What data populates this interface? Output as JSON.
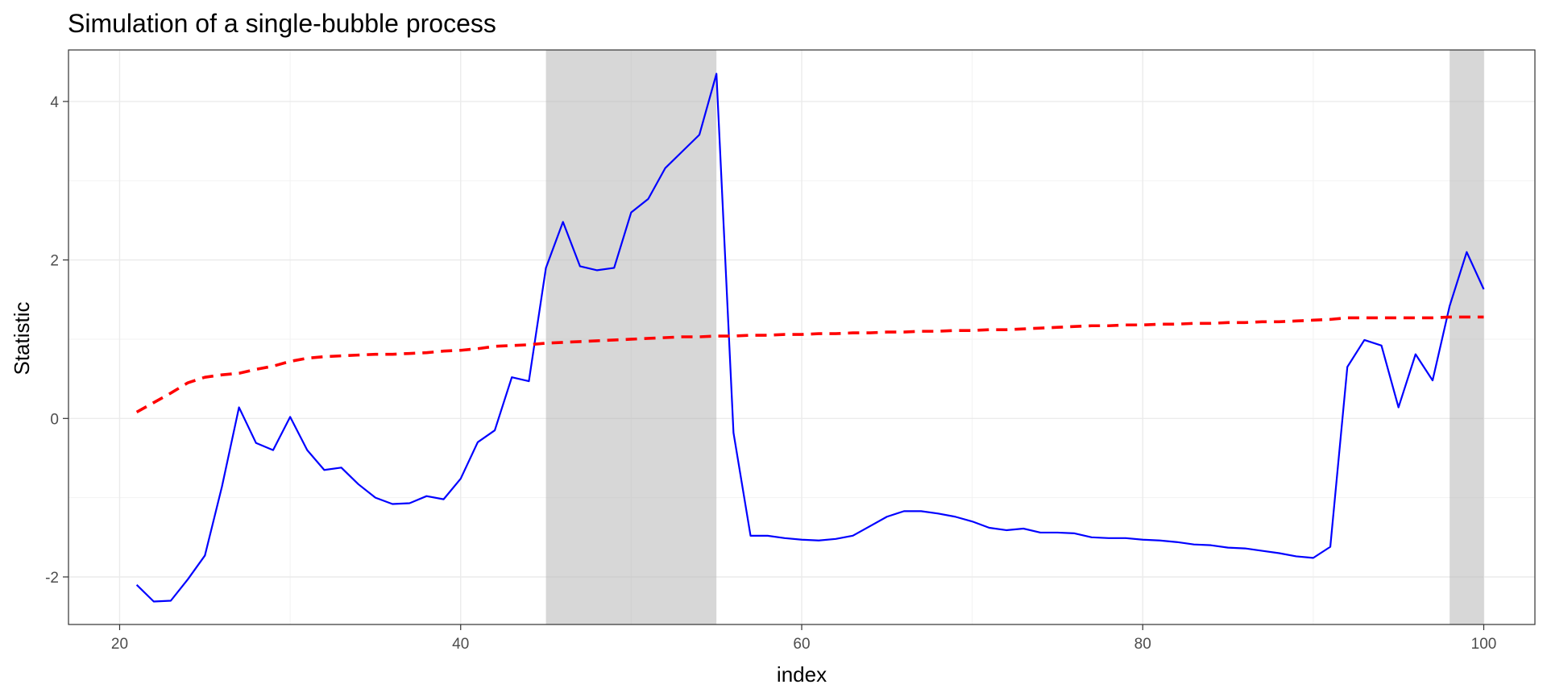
{
  "chart_data": {
    "type": "line",
    "title": "Simulation of a single-bubble process",
    "xlabel": "index",
    "ylabel": "Statistic",
    "xlim": [
      17,
      103
    ],
    "ylim": [
      -2.6,
      4.65
    ],
    "x_ticks": [
      20,
      40,
      60,
      80,
      100
    ],
    "y_ticks": [
      -2,
      0,
      2,
      4
    ],
    "x_tick_labels": [
      "20",
      "40",
      "60",
      "80",
      "100"
    ],
    "y_tick_labels": [
      "-2",
      "0",
      "2",
      "4"
    ],
    "grid": true,
    "legend": "none",
    "shaded_regions": [
      {
        "start": 45,
        "end": 55
      },
      {
        "start": 98,
        "end": 100
      }
    ],
    "series": [
      {
        "color": "#0000ff",
        "line_style": "solid",
        "x": [
          21,
          22,
          23,
          24,
          25,
          26,
          27,
          28,
          29,
          30,
          31,
          32,
          33,
          34,
          35,
          36,
          37,
          38,
          39,
          40,
          41,
          42,
          43,
          44,
          45,
          46,
          47,
          48,
          49,
          50,
          51,
          52,
          53,
          54,
          55,
          56,
          57,
          58,
          59,
          60,
          61,
          62,
          63,
          64,
          65,
          66,
          67,
          68,
          69,
          70,
          71,
          72,
          73,
          74,
          75,
          76,
          77,
          78,
          79,
          80,
          81,
          82,
          83,
          84,
          85,
          86,
          87,
          88,
          89,
          90,
          91,
          92,
          93,
          94,
          95,
          96,
          97,
          98,
          99,
          100
        ],
        "y": [
          -2.1,
          -2.31,
          -2.3,
          -2.03,
          -1.73,
          -0.86,
          0.14,
          -0.31,
          -0.4,
          0.02,
          -0.4,
          -0.65,
          -0.62,
          -0.83,
          -1.0,
          -1.08,
          -1.07,
          -0.98,
          -1.02,
          -0.76,
          -0.3,
          -0.15,
          0.52,
          0.47,
          1.9,
          2.48,
          1.92,
          1.87,
          1.9,
          2.6,
          2.77,
          3.16,
          3.37,
          3.58,
          4.35,
          -0.18,
          -1.48,
          -1.48,
          -1.51,
          -1.53,
          -1.54,
          -1.52,
          -1.48,
          -1.36,
          -1.24,
          -1.17,
          -1.17,
          -1.2,
          -1.24,
          -1.3,
          -1.38,
          -1.41,
          -1.39,
          -1.44,
          -1.44,
          -1.45,
          -1.5,
          -1.51,
          -1.51,
          -1.53,
          -1.54,
          -1.56,
          -1.59,
          -1.6,
          -1.63,
          -1.64,
          -1.67,
          -1.7,
          -1.74,
          -1.76,
          -1.62,
          0.65,
          0.99,
          0.92,
          0.14,
          0.81,
          0.48,
          1.42,
          2.1,
          1.63
        ]
      },
      {
        "color": "#ff0000",
        "line_style": "dashed",
        "x": [
          21,
          22,
          23,
          24,
          25,
          26,
          27,
          28,
          29,
          30,
          31,
          32,
          33,
          34,
          35,
          36,
          37,
          38,
          39,
          40,
          41,
          42,
          43,
          44,
          45,
          46,
          47,
          48,
          49,
          50,
          51,
          52,
          53,
          54,
          55,
          56,
          57,
          58,
          59,
          60,
          61,
          62,
          63,
          64,
          65,
          66,
          67,
          68,
          69,
          70,
          71,
          72,
          73,
          74,
          75,
          76,
          77,
          78,
          79,
          80,
          81,
          82,
          83,
          84,
          85,
          86,
          87,
          88,
          89,
          90,
          91,
          92,
          93,
          94,
          95,
          96,
          97,
          98,
          99,
          100
        ],
        "y": [
          0.08,
          0.2,
          0.32,
          0.45,
          0.52,
          0.55,
          0.57,
          0.62,
          0.66,
          0.72,
          0.76,
          0.78,
          0.79,
          0.8,
          0.81,
          0.81,
          0.82,
          0.83,
          0.85,
          0.86,
          0.88,
          0.91,
          0.92,
          0.93,
          0.95,
          0.96,
          0.97,
          0.98,
          0.99,
          1.0,
          1.01,
          1.02,
          1.03,
          1.03,
          1.04,
          1.04,
          1.05,
          1.05,
          1.06,
          1.06,
          1.07,
          1.07,
          1.08,
          1.08,
          1.09,
          1.09,
          1.1,
          1.1,
          1.11,
          1.11,
          1.12,
          1.12,
          1.13,
          1.14,
          1.15,
          1.16,
          1.17,
          1.17,
          1.18,
          1.18,
          1.19,
          1.19,
          1.2,
          1.2,
          1.21,
          1.21,
          1.22,
          1.22,
          1.23,
          1.24,
          1.25,
          1.27,
          1.27,
          1.27,
          1.27,
          1.27,
          1.27,
          1.28,
          1.28,
          1.28
        ]
      }
    ]
  }
}
